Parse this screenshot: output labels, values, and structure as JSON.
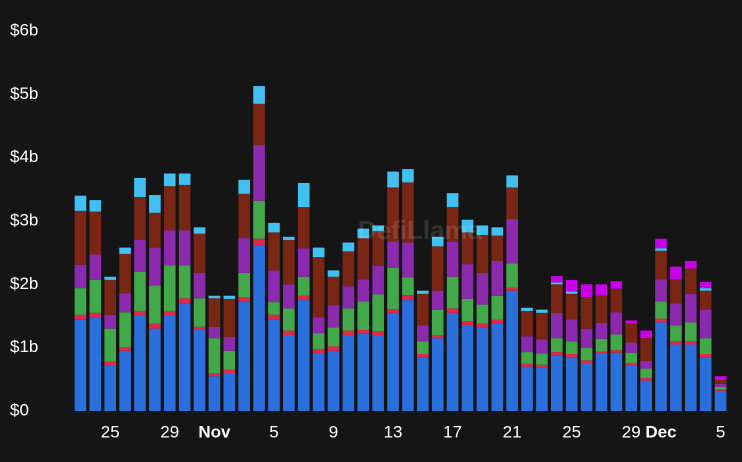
{
  "chart_data": {
    "type": "stacked-bar",
    "watermark": "DefiLlama",
    "categories": [
      null,
      null,
      "25",
      null,
      null,
      null,
      "29",
      null,
      null,
      "Nov",
      null,
      null,
      null,
      "5",
      null,
      null,
      null,
      "9",
      null,
      null,
      null,
      "13",
      null,
      null,
      null,
      "17",
      null,
      null,
      null,
      "21",
      null,
      null,
      null,
      "25",
      null,
      null,
      null,
      "29",
      null,
      "Dec",
      null,
      null,
      null,
      "5"
    ],
    "ylim": [
      0,
      6
    ],
    "yticks": [
      {
        "value": 0,
        "label": "$0"
      },
      {
        "value": 1,
        "label": "$1b"
      },
      {
        "value": 2,
        "label": "$2b"
      },
      {
        "value": 3,
        "label": "$3b"
      },
      {
        "value": 4,
        "label": "$4b"
      },
      {
        "value": 5,
        "label": "$5b"
      },
      {
        "value": 6,
        "label": "$6b"
      }
    ],
    "series": [
      {
        "color": "#2b6fdc",
        "values": [
          1.44,
          1.47,
          0.72,
          0.95,
          1.5,
          1.3,
          1.5,
          1.7,
          1.28,
          0.55,
          0.6,
          1.72,
          2.62,
          1.45,
          1.2,
          1.75,
          0.9,
          0.95,
          1.2,
          1.22,
          1.2,
          1.55,
          1.75,
          0.85,
          1.15,
          1.55,
          1.35,
          1.32,
          1.38,
          1.9,
          0.7,
          0.68,
          0.88,
          0.85,
          0.75,
          0.9,
          0.92,
          0.72,
          0.48,
          1.4,
          1.05,
          1.05,
          0.85,
          0.32
        ]
      },
      {
        "color": "#e0284a",
        "values": [
          0.08,
          0.08,
          0.06,
          0.06,
          0.08,
          0.08,
          0.08,
          0.08,
          0.05,
          0.05,
          0.05,
          0.08,
          0.1,
          0.07,
          0.07,
          0.07,
          0.08,
          0.07,
          0.07,
          0.06,
          0.06,
          0.06,
          0.08,
          0.05,
          0.05,
          0.07,
          0.07,
          0.06,
          0.06,
          0.05,
          0.05,
          0.05,
          0.05,
          0.05,
          0.05,
          0.04,
          0.04,
          0.04,
          0.04,
          0.06,
          0.05,
          0.05,
          0.05,
          0.02
        ]
      },
      {
        "color": "#43a849",
        "values": [
          0.42,
          0.52,
          0.52,
          0.55,
          0.62,
          0.6,
          0.72,
          0.52,
          0.45,
          0.55,
          0.3,
          0.38,
          0.6,
          0.2,
          0.35,
          0.3,
          0.25,
          0.3,
          0.35,
          0.45,
          0.58,
          0.65,
          0.28,
          0.2,
          0.4,
          0.5,
          0.35,
          0.3,
          0.38,
          0.38,
          0.18,
          0.18,
          0.22,
          0.2,
          0.2,
          0.2,
          0.25,
          0.16,
          0.15,
          0.27,
          0.25,
          0.3,
          0.25,
          0.04
        ]
      },
      {
        "color": "#8b2aad",
        "values": [
          0.37,
          0.4,
          0.22,
          0.3,
          0.5,
          0.6,
          0.55,
          0.55,
          0.4,
          0.18,
          0.22,
          0.55,
          0.88,
          0.5,
          0.38,
          0.45,
          0.25,
          0.35,
          0.35,
          0.35,
          0.45,
          0.42,
          0.55,
          0.25,
          0.3,
          0.55,
          0.55,
          0.5,
          0.55,
          0.7,
          0.25,
          0.22,
          0.4,
          0.35,
          0.3,
          0.25,
          0.35,
          0.16,
          0.12,
          0.35,
          0.35,
          0.45,
          0.45,
          0.05
        ]
      },
      {
        "color": "#7a2614",
        "values": [
          0.85,
          0.68,
          0.55,
          0.62,
          0.68,
          0.55,
          0.7,
          0.72,
          0.62,
          0.45,
          0.6,
          0.7,
          0.65,
          0.6,
          0.7,
          0.65,
          0.95,
          0.45,
          0.55,
          0.65,
          0.55,
          0.85,
          0.95,
          0.5,
          0.7,
          0.55,
          0.5,
          0.6,
          0.4,
          0.5,
          0.4,
          0.42,
          0.45,
          0.4,
          0.5,
          0.43,
          0.37,
          0.3,
          0.36,
          0.45,
          0.38,
          0.4,
          0.3,
          0.06
        ]
      },
      {
        "color": "#42c0f2",
        "values": [
          0.24,
          0.18,
          0.05,
          0.1,
          0.3,
          0.28,
          0.2,
          0.18,
          0.1,
          0.04,
          0.05,
          0.22,
          0.28,
          0.15,
          0.05,
          0.38,
          0.15,
          0.1,
          0.14,
          0.15,
          0.09,
          0.25,
          0.21,
          0.05,
          0.15,
          0.22,
          0.2,
          0.15,
          0.13,
          0.19,
          0.05,
          0.05,
          0.03,
          0.04,
          0,
          0,
          0,
          0,
          0,
          0.04,
          0,
          0,
          0.04,
          0
        ]
      },
      {
        "color": "#c800e6",
        "values": [
          0,
          0,
          0,
          0,
          0,
          0,
          0,
          0,
          0,
          0,
          0,
          0,
          0,
          0,
          0,
          0,
          0,
          0,
          0,
          0,
          0,
          0,
          0,
          0,
          0,
          0,
          0,
          0,
          0,
          0,
          0,
          0,
          0.1,
          0.18,
          0.2,
          0.18,
          0.12,
          0.05,
          0.12,
          0.15,
          0.2,
          0.12,
          0.1,
          0.06
        ]
      }
    ]
  }
}
